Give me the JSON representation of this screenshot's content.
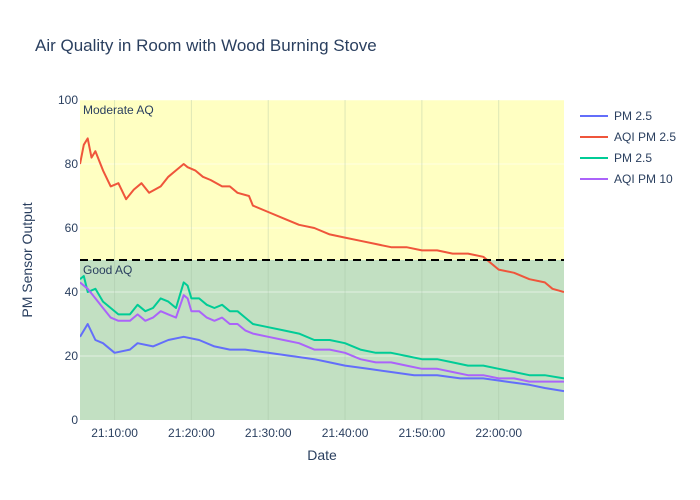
{
  "chart_data": {
    "type": "line",
    "title": "Air Quality in Room with Wood Burning Stove",
    "xlabel": "Date",
    "ylabel": "PM Sensor Output",
    "x_ticks": [
      "21:10:00",
      "21:20:00",
      "21:30:00",
      "21:40:00",
      "21:50:00",
      "22:00:00"
    ],
    "x_tick_minutes": [
      10,
      20,
      30,
      40,
      50,
      60
    ],
    "xlim_minutes": [
      5.5,
      68.5
    ],
    "x_start_clock": "21:00:00",
    "ylim": [
      0,
      100
    ],
    "y_ticks": [
      0,
      20,
      40,
      60,
      80,
      100
    ],
    "threshold": 50,
    "zones": [
      {
        "label": "Good AQ",
        "from": 0,
        "to": 50,
        "color": "#c2e0c2"
      },
      {
        "label": "Moderate AQ",
        "from": 50,
        "to": 100,
        "color": "#ffffc2"
      }
    ],
    "series": [
      {
        "name": "PM 2.5",
        "color": "#636efa",
        "points": [
          [
            5.5,
            26
          ],
          [
            6.5,
            30
          ],
          [
            7.5,
            25
          ],
          [
            8.5,
            24
          ],
          [
            10,
            21
          ],
          [
            12,
            22
          ],
          [
            13,
            24
          ],
          [
            15,
            23
          ],
          [
            17,
            25
          ],
          [
            19,
            26
          ],
          [
            21,
            25
          ],
          [
            23,
            23
          ],
          [
            25,
            22
          ],
          [
            27,
            22
          ],
          [
            30,
            21
          ],
          [
            33,
            20
          ],
          [
            36,
            19
          ],
          [
            38,
            18
          ],
          [
            40,
            17
          ],
          [
            43,
            16
          ],
          [
            46,
            15
          ],
          [
            49,
            14
          ],
          [
            52,
            14
          ],
          [
            55,
            13
          ],
          [
            58,
            13
          ],
          [
            61,
            12
          ],
          [
            64,
            11
          ],
          [
            66,
            10
          ],
          [
            68.5,
            9
          ]
        ]
      },
      {
        "name": "AQI PM 2.5",
        "color": "#ef553b",
        "points": [
          [
            5.5,
            80
          ],
          [
            6,
            86
          ],
          [
            6.5,
            88
          ],
          [
            7,
            82
          ],
          [
            7.5,
            84
          ],
          [
            8.5,
            78
          ],
          [
            9.5,
            73
          ],
          [
            10.5,
            74
          ],
          [
            11.5,
            69
          ],
          [
            12.5,
            72
          ],
          [
            13.5,
            74
          ],
          [
            14.5,
            71
          ],
          [
            16,
            73
          ],
          [
            17,
            76
          ],
          [
            18,
            78
          ],
          [
            19,
            80
          ],
          [
            19.5,
            79
          ],
          [
            20.5,
            78
          ],
          [
            21.5,
            76
          ],
          [
            22.5,
            75
          ],
          [
            24,
            73
          ],
          [
            25,
            73
          ],
          [
            26,
            71
          ],
          [
            27.5,
            70
          ],
          [
            28,
            67
          ],
          [
            30,
            65
          ],
          [
            32,
            63
          ],
          [
            34,
            61
          ],
          [
            36,
            60
          ],
          [
            38,
            58
          ],
          [
            40,
            57
          ],
          [
            42,
            56
          ],
          [
            44,
            55
          ],
          [
            46,
            54
          ],
          [
            48,
            54
          ],
          [
            50,
            53
          ],
          [
            52,
            53
          ],
          [
            54,
            52
          ],
          [
            56,
            52
          ],
          [
            58,
            51
          ],
          [
            60,
            47
          ],
          [
            62,
            46
          ],
          [
            64,
            44
          ],
          [
            66,
            43
          ],
          [
            67,
            41
          ],
          [
            68.5,
            40
          ]
        ]
      },
      {
        "name": "PM 2.5",
        "color": "#00cc96",
        "points": [
          [
            5.5,
            44
          ],
          [
            6,
            45
          ],
          [
            6.5,
            40
          ],
          [
            7.5,
            41
          ],
          [
            8.5,
            37
          ],
          [
            9.5,
            35
          ],
          [
            10.5,
            33
          ],
          [
            12,
            33
          ],
          [
            13,
            36
          ],
          [
            14,
            34
          ],
          [
            15,
            35
          ],
          [
            16,
            38
          ],
          [
            17,
            37
          ],
          [
            18,
            35
          ],
          [
            19,
            43
          ],
          [
            19.5,
            42
          ],
          [
            20,
            38
          ],
          [
            21,
            38
          ],
          [
            22,
            36
          ],
          [
            23,
            35
          ],
          [
            24,
            36
          ],
          [
            25,
            34
          ],
          [
            26,
            34
          ],
          [
            27,
            32
          ],
          [
            28,
            30
          ],
          [
            30,
            29
          ],
          [
            32,
            28
          ],
          [
            34,
            27
          ],
          [
            36,
            25
          ],
          [
            38,
            25
          ],
          [
            40,
            24
          ],
          [
            42,
            22
          ],
          [
            44,
            21
          ],
          [
            46,
            21
          ],
          [
            48,
            20
          ],
          [
            50,
            19
          ],
          [
            52,
            19
          ],
          [
            54,
            18
          ],
          [
            56,
            17
          ],
          [
            58,
            17
          ],
          [
            60,
            16
          ],
          [
            62,
            15
          ],
          [
            64,
            14
          ],
          [
            66,
            14
          ],
          [
            68.5,
            13
          ]
        ]
      },
      {
        "name": "AQI PM 10",
        "color": "#ab63fa",
        "points": [
          [
            5.5,
            43
          ],
          [
            6.5,
            41
          ],
          [
            7.5,
            38
          ],
          [
            8.5,
            35
          ],
          [
            9.5,
            32
          ],
          [
            10.5,
            31
          ],
          [
            12,
            31
          ],
          [
            13,
            33
          ],
          [
            14,
            31
          ],
          [
            15,
            32
          ],
          [
            16,
            34
          ],
          [
            17,
            33
          ],
          [
            18,
            32
          ],
          [
            19,
            39
          ],
          [
            19.5,
            38
          ],
          [
            20,
            34
          ],
          [
            21,
            34
          ],
          [
            22,
            32
          ],
          [
            23,
            31
          ],
          [
            24,
            32
          ],
          [
            25,
            30
          ],
          [
            26,
            30
          ],
          [
            27,
            28
          ],
          [
            28,
            27
          ],
          [
            30,
            26
          ],
          [
            32,
            25
          ],
          [
            34,
            24
          ],
          [
            36,
            22
          ],
          [
            38,
            22
          ],
          [
            40,
            21
          ],
          [
            42,
            19
          ],
          [
            44,
            18
          ],
          [
            46,
            18
          ],
          [
            48,
            17
          ],
          [
            50,
            16
          ],
          [
            52,
            16
          ],
          [
            54,
            15
          ],
          [
            56,
            14
          ],
          [
            58,
            14
          ],
          [
            60,
            13
          ],
          [
            62,
            13
          ],
          [
            64,
            12
          ],
          [
            66,
            12
          ],
          [
            68.5,
            12
          ]
        ]
      }
    ],
    "legend": [
      "PM 2.5",
      "AQI PM 2.5",
      "PM 2.5",
      "AQI PM 10"
    ],
    "legend_placement": "top-right",
    "grid": true
  }
}
